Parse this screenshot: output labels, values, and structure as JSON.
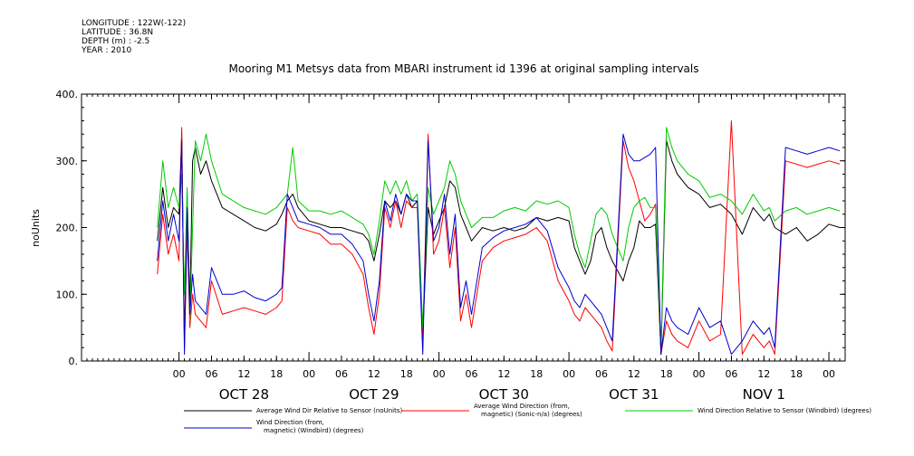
{
  "meta": {
    "longitude": "LONGITUDE : 122W(-122)",
    "latitude": "LATITUDE : 36.8N",
    "depth": "DEPTH (m) : -2.5",
    "year": "YEAR : 2010"
  },
  "chart_data": {
    "type": "line",
    "title": "Mooring M1 Metsys data from MBARI instrument id 1396 at original sampling intervals",
    "ylabel": "noUnits",
    "xlabel": "",
    "ylim": [
      0,
      400
    ],
    "yticks": [
      0,
      100,
      200,
      300,
      400
    ],
    "ytick_labels": [
      "0.",
      "100.",
      "200.",
      "300.",
      "400."
    ],
    "x_unit": "hours since OCT 28 00:00",
    "xlim": [
      -18,
      123
    ],
    "hour_ticks": [
      0,
      6,
      12,
      18,
      24,
      30,
      36,
      42,
      48,
      54,
      60,
      66,
      72,
      78,
      84,
      90,
      96,
      102,
      108,
      114,
      120
    ],
    "hour_tick_labels": [
      "00",
      "06",
      "12",
      "18",
      "00",
      "06",
      "12",
      "18",
      "00",
      "06",
      "12",
      "18",
      "00",
      "06",
      "12",
      "18",
      "00",
      "06",
      "12",
      "18",
      "00"
    ],
    "day_labels": [
      {
        "x": 12,
        "label": "OCT 28"
      },
      {
        "x": 36,
        "label": "OCT 29"
      },
      {
        "x": 60,
        "label": "OCT 30"
      },
      {
        "x": 84,
        "label": "OCT 31"
      },
      {
        "x": 108,
        "label": "NOV  1"
      }
    ],
    "grid": false,
    "legend_position": "bottom",
    "series": [
      {
        "name": "Average Wind Dir Relative to Sensor (noUnits)",
        "color": "#000000",
        "x": [
          -4,
          -3,
          -2,
          -1,
          0,
          0.5,
          1,
          1.5,
          2,
          2.5,
          3,
          4,
          5,
          6,
          8,
          10,
          12,
          14,
          16,
          18,
          19,
          20,
          21,
          22,
          24,
          26,
          28,
          30,
          32,
          34,
          35,
          36,
          37,
          38,
          39,
          40,
          41,
          42,
          43,
          44,
          45,
          46,
          47,
          48,
          49,
          50,
          51,
          52,
          53,
          54,
          56,
          58,
          60,
          62,
          64,
          66,
          68,
          70,
          72,
          73,
          74,
          75,
          76,
          77,
          78,
          79,
          80,
          82,
          83,
          84,
          85,
          86,
          87,
          88,
          89,
          90,
          91,
          92,
          94,
          96,
          98,
          100,
          102,
          104,
          106,
          108,
          109,
          110,
          112,
          114,
          116,
          118,
          120,
          122
        ],
        "y": [
          180,
          260,
          200,
          230,
          220,
          340,
          30,
          250,
          80,
          300,
          320,
          280,
          300,
          270,
          230,
          220,
          210,
          200,
          195,
          205,
          220,
          240,
          250,
          230,
          210,
          205,
          200,
          200,
          195,
          190,
          180,
          150,
          190,
          240,
          230,
          240,
          220,
          250,
          230,
          240,
          40,
          230,
          190,
          210,
          230,
          270,
          260,
          220,
          200,
          180,
          200,
          195,
          200,
          195,
          200,
          215,
          210,
          215,
          210,
          170,
          150,
          130,
          150,
          190,
          200,
          170,
          150,
          120,
          150,
          170,
          210,
          200,
          200,
          205,
          10,
          330,
          300,
          280,
          260,
          250,
          230,
          235,
          220,
          190,
          230,
          210,
          220,
          200,
          190,
          200,
          180,
          190,
          205,
          200
        ]
      },
      {
        "name": "Average Wind Direction (from, magnetic) (Sonic-n/a) (degrees)",
        "color": "#ff0000",
        "x": [
          -4,
          -3,
          -2,
          -1,
          0,
          0.5,
          1,
          1.5,
          2,
          2.5,
          3,
          4,
          5,
          6,
          8,
          10,
          12,
          14,
          16,
          18,
          19,
          20,
          21,
          22,
          24,
          26,
          28,
          30,
          32,
          34,
          35,
          36,
          37,
          38,
          39,
          40,
          41,
          42,
          43,
          44,
          45,
          46,
          47,
          48,
          49,
          50,
          51,
          52,
          53,
          54,
          56,
          58,
          60,
          62,
          64,
          66,
          68,
          70,
          72,
          73,
          74,
          75,
          76,
          77,
          78,
          79,
          80,
          82,
          83,
          84,
          85,
          86,
          87,
          88,
          89,
          90,
          91,
          92,
          94,
          96,
          98,
          100,
          102,
          104,
          106,
          108,
          109,
          110,
          112,
          114,
          116,
          118,
          120,
          122
        ],
        "y": [
          130,
          220,
          160,
          190,
          150,
          350,
          20,
          200,
          50,
          100,
          70,
          60,
          50,
          120,
          70,
          75,
          80,
          75,
          70,
          80,
          90,
          230,
          210,
          200,
          195,
          190,
          175,
          175,
          160,
          130,
          80,
          40,
          100,
          230,
          200,
          240,
          200,
          240,
          230,
          230,
          30,
          340,
          160,
          180,
          230,
          140,
          200,
          60,
          100,
          50,
          150,
          170,
          180,
          185,
          190,
          200,
          180,
          120,
          90,
          70,
          60,
          80,
          70,
          60,
          50,
          30,
          15,
          330,
          290,
          270,
          240,
          210,
          220,
          235,
          10,
          60,
          40,
          30,
          20,
          60,
          30,
          40,
          360,
          10,
          40,
          20,
          30,
          10,
          300,
          295,
          290,
          295,
          300,
          295
        ]
      },
      {
        "name": "Wind Direction Relative to Sensor (Windbird) (degrees)",
        "color": "#00cc00",
        "x": [
          -4,
          -3,
          -2,
          -1,
          0,
          0.5,
          1,
          1.5,
          2,
          2.5,
          3,
          4,
          5,
          6,
          8,
          10,
          12,
          14,
          16,
          18,
          19,
          20,
          21,
          22,
          24,
          26,
          28,
          30,
          32,
          34,
          35,
          36,
          37,
          38,
          39,
          40,
          41,
          42,
          43,
          44,
          45,
          46,
          47,
          48,
          49,
          50,
          51,
          52,
          53,
          54,
          56,
          58,
          60,
          62,
          64,
          66,
          68,
          70,
          72,
          73,
          74,
          75,
          76,
          77,
          78,
          79,
          80,
          82,
          83,
          84,
          85,
          86,
          87,
          88,
          89,
          90,
          91,
          92,
          94,
          96,
          98,
          100,
          102,
          104,
          106,
          108,
          109,
          110,
          112,
          114,
          116,
          118,
          120,
          122
        ],
        "y": [
          200,
          300,
          230,
          260,
          230,
          280,
          100,
          260,
          60,
          200,
          330,
          300,
          340,
          300,
          250,
          240,
          230,
          225,
          220,
          230,
          240,
          250,
          320,
          240,
          225,
          225,
          220,
          225,
          215,
          205,
          190,
          160,
          210,
          270,
          250,
          270,
          250,
          270,
          240,
          250,
          50,
          260,
          220,
          240,
          260,
          300,
          280,
          240,
          220,
          200,
          215,
          215,
          225,
          230,
          225,
          240,
          235,
          240,
          230,
          190,
          160,
          140,
          180,
          220,
          230,
          220,
          190,
          150,
          200,
          230,
          240,
          245,
          230,
          230,
          20,
          350,
          320,
          300,
          280,
          270,
          245,
          250,
          240,
          220,
          250,
          225,
          230,
          210,
          225,
          230,
          220,
          225,
          230,
          225
        ]
      },
      {
        "name": "Wind Direction (from, magnetic) (Windbird) (degrees)",
        "color": "#0000cc",
        "x": [
          -4,
          -3,
          -2,
          -1,
          0,
          0.5,
          1,
          1.5,
          2,
          2.5,
          3,
          4,
          5,
          6,
          8,
          10,
          12,
          14,
          16,
          18,
          19,
          20,
          21,
          22,
          24,
          26,
          28,
          30,
          32,
          34,
          35,
          36,
          37,
          38,
          39,
          40,
          41,
          42,
          43,
          44,
          45,
          46,
          47,
          48,
          49,
          50,
          51,
          52,
          53,
          54,
          56,
          58,
          60,
          62,
          64,
          66,
          68,
          70,
          72,
          73,
          74,
          75,
          76,
          77,
          78,
          79,
          80,
          82,
          83,
          84,
          85,
          86,
          87,
          88,
          89,
          90,
          91,
          92,
          94,
          96,
          98,
          100,
          102,
          104,
          106,
          108,
          109,
          110,
          112,
          114,
          116,
          118,
          120,
          122
        ],
        "y": [
          150,
          240,
          180,
          220,
          180,
          330,
          10,
          230,
          70,
          130,
          90,
          80,
          70,
          140,
          100,
          100,
          105,
          95,
          90,
          100,
          110,
          250,
          230,
          210,
          205,
          200,
          190,
          190,
          175,
          150,
          100,
          60,
          120,
          240,
          210,
          250,
          220,
          250,
          240,
          240,
          10,
          330,
          180,
          200,
          250,
          160,
          220,
          80,
          120,
          70,
          170,
          185,
          195,
          200,
          205,
          215,
          195,
          140,
          110,
          90,
          80,
          100,
          90,
          80,
          70,
          50,
          30,
          340,
          310,
          300,
          300,
          305,
          310,
          320,
          10,
          80,
          60,
          50,
          40,
          80,
          50,
          60,
          10,
          30,
          60,
          40,
          50,
          20,
          320,
          315,
          310,
          315,
          320,
          315
        ]
      }
    ]
  }
}
